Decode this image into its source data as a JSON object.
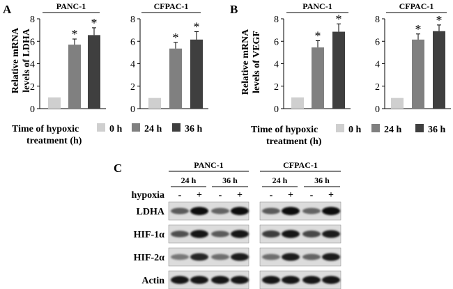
{
  "panel_labels": [
    "A",
    "B",
    "C"
  ],
  "legend": {
    "title_line1": "Time of hypoxic",
    "title_line2": "treatment (h)",
    "entries": [
      {
        "label": "0 h",
        "color": "#cfcfcf"
      },
      {
        "label": "24 h",
        "color": "#808080"
      },
      {
        "label": "36 h",
        "color": "#3f3f3f"
      }
    ]
  },
  "chart_data": [
    {
      "type": "bar",
      "panel": "A",
      "title": "PANC-1",
      "ylabel_line1": "Relative mRNA",
      "ylabel_line2": "levels of LDHA",
      "categories": [
        "0 h",
        "24 h",
        "36 h"
      ],
      "values": [
        1.0,
        5.7,
        6.55
      ],
      "errors": [
        0,
        0.5,
        0.65
      ],
      "significant": [
        false,
        true,
        true
      ],
      "ylim": [
        0,
        8
      ],
      "yticks": [
        0,
        2,
        4,
        6,
        8
      ],
      "sig_marker": "*"
    },
    {
      "type": "bar",
      "panel": "A",
      "title": "CFPAC-1",
      "ylabel_line1": "",
      "ylabel_line2": "",
      "categories": [
        "0 h",
        "24 h",
        "36 h"
      ],
      "values": [
        0.95,
        5.35,
        6.15
      ],
      "errors": [
        0,
        0.55,
        0.7
      ],
      "significant": [
        false,
        true,
        true
      ],
      "ylim": [
        0,
        8
      ],
      "yticks": [
        0,
        2,
        4,
        6,
        8
      ],
      "sig_marker": "*"
    },
    {
      "type": "bar",
      "panel": "B",
      "title": "PANC-1",
      "ylabel_line1": "Relative mRNA",
      "ylabel_line2": "levels of VEGF",
      "categories": [
        "0 h",
        "24 h",
        "36 h"
      ],
      "values": [
        1.0,
        5.45,
        6.85
      ],
      "errors": [
        0,
        0.6,
        0.7
      ],
      "significant": [
        false,
        true,
        true
      ],
      "ylim": [
        0,
        8
      ],
      "yticks": [
        0,
        2,
        4,
        6,
        8
      ],
      "sig_marker": "*"
    },
    {
      "type": "bar",
      "panel": "B",
      "title": "CFPAC-1",
      "ylabel_line1": "",
      "ylabel_line2": "",
      "categories": [
        "0 h",
        "24 h",
        "36 h"
      ],
      "values": [
        0.95,
        6.15,
        6.9
      ],
      "errors": [
        0,
        0.5,
        0.55
      ],
      "significant": [
        false,
        true,
        true
      ],
      "ylim": [
        0,
        8
      ],
      "yticks": [
        0,
        2,
        4,
        6,
        8
      ],
      "sig_marker": "*"
    }
  ],
  "western_blot": {
    "cell_lines": [
      {
        "name": "PANC-1",
        "times": [
          "24 h",
          "36 h"
        ],
        "hypoxia": [
          "-",
          "+",
          "-",
          "+"
        ]
      },
      {
        "name": "CFPAC-1",
        "times": [
          "24 h",
          "36 h"
        ],
        "hypoxia": [
          "-",
          "+",
          "-",
          "+"
        ]
      }
    ],
    "hypoxia_label": "hypoxia",
    "rows": [
      {
        "label": "LDHA",
        "intensity": [
          0.55,
          0.95,
          0.5,
          0.95,
          0.55,
          0.95,
          0.5,
          0.95
        ]
      },
      {
        "label": "HIF-1α",
        "intensity": [
          0.6,
          0.9,
          0.55,
          0.9,
          0.7,
          0.9,
          0.65,
          0.85
        ]
      },
      {
        "label": "HIF-2α",
        "intensity": [
          0.4,
          0.8,
          0.45,
          0.85,
          0.45,
          0.85,
          0.5,
          0.85
        ]
      },
      {
        "label": "Actin",
        "intensity": [
          0.9,
          0.9,
          0.9,
          0.9,
          0.9,
          0.9,
          0.9,
          0.9
        ]
      }
    ]
  }
}
